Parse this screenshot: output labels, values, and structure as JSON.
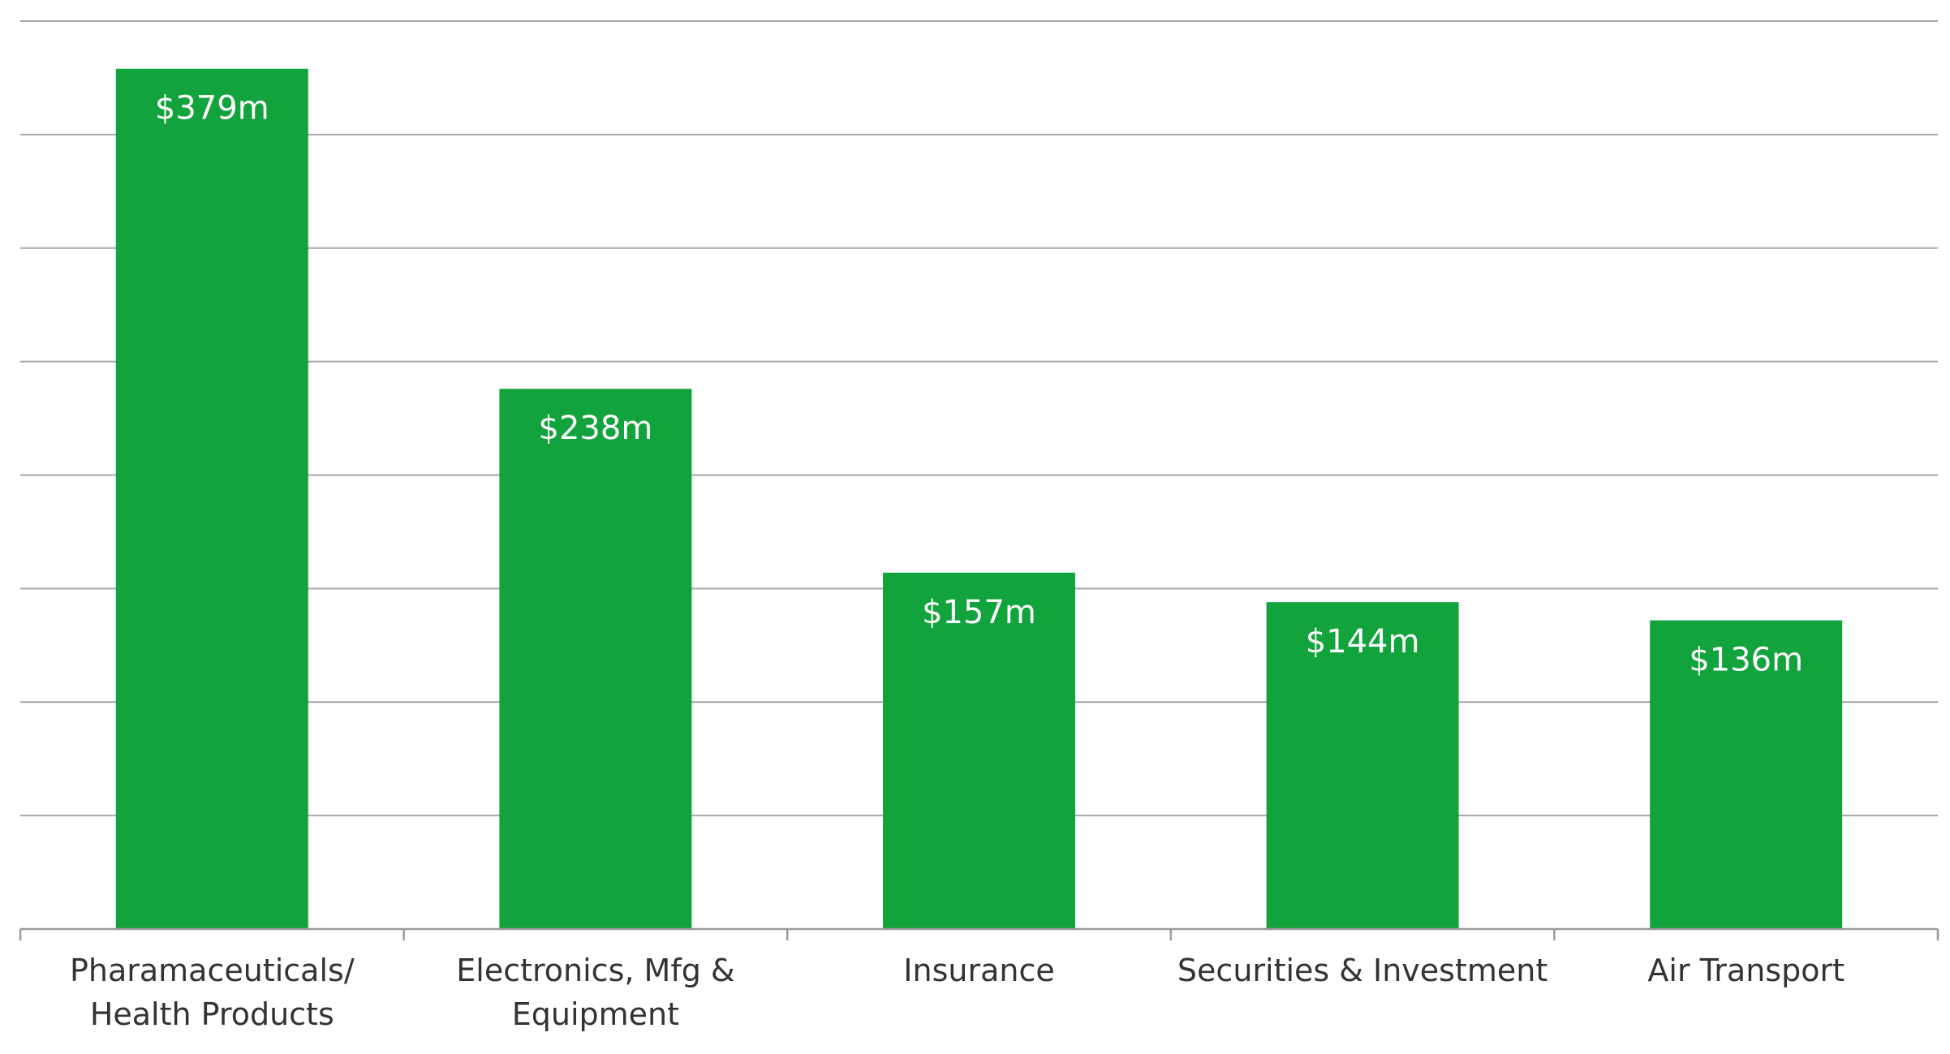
{
  "chart_data": {
    "type": "bar",
    "title": "",
    "xlabel": "",
    "ylabel": "",
    "ylim": [
      0,
      400
    ],
    "grid": true,
    "gridline_count": 8,
    "legend": "none",
    "categories": [
      [
        "Pharamaceuticals/",
        "Health Products"
      ],
      [
        "Electronics, Mfg &",
        "Equipment"
      ],
      [
        "Insurance"
      ],
      [
        "Securities & Investment"
      ],
      [
        "Air Transport"
      ]
    ],
    "values": [
      379,
      238,
      157,
      144,
      136
    ],
    "data_labels": [
      "$379m",
      "$238m",
      "$157m",
      "$144m",
      "$136m"
    ],
    "colors": {
      "bar": "#12a33d",
      "grid": "#a6a6a6",
      "axis": "#9a9a9a",
      "label_inside": "#ffffff",
      "category_text": "#333333"
    }
  }
}
